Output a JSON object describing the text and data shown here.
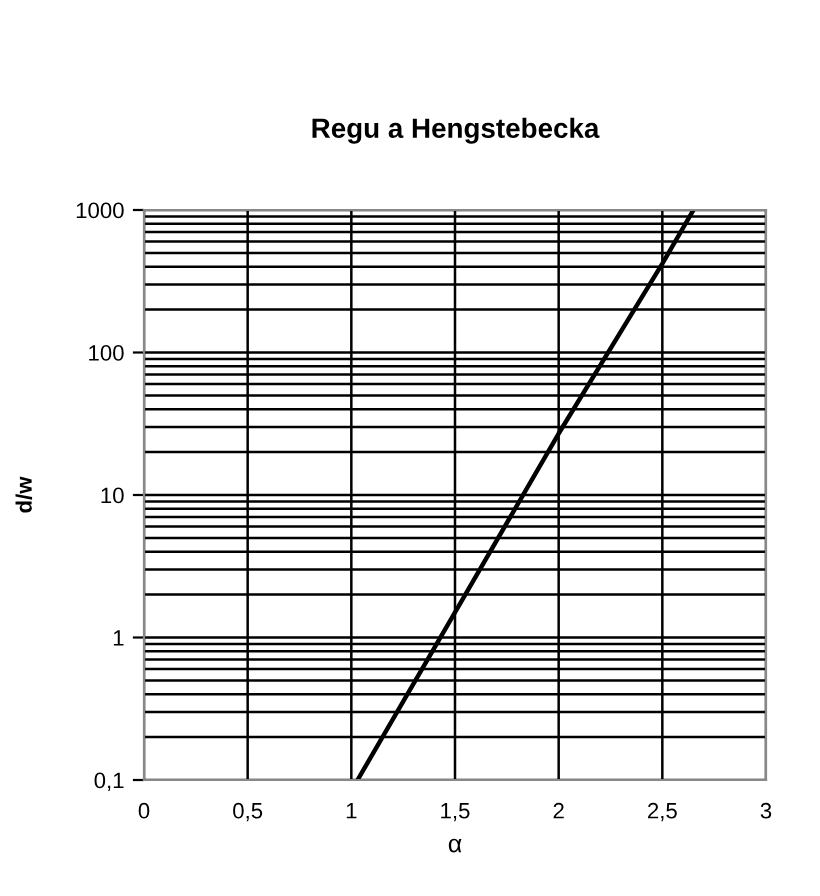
{
  "chart_data": {
    "type": "line",
    "title": "Regu a Hengstebecka",
    "xlabel": "α",
    "ylabel": "d/w",
    "x": [
      1.03,
      1.5,
      2,
      2.5,
      2.65
    ],
    "series": [
      {
        "color": "#000000",
        "values": [
          0.1,
          1.5,
          27,
          420,
          1000
        ]
      }
    ],
    "xlim": [
      0,
      3
    ],
    "ylim": [
      0.1,
      1000
    ],
    "log": "y",
    "xticks": [
      0,
      {
        "value": 0.5,
        "label": "0,5"
      },
      1,
      {
        "value": 1.5,
        "label": "1,5"
      },
      2,
      {
        "value": 2.5,
        "label": "2,5"
      },
      3
    ],
    "yticks": [
      {
        "value": 0.1,
        "label": "0,1"
      },
      1,
      10,
      100,
      1000
    ],
    "grid": true,
    "marker": "none",
    "line_style": "solid"
  }
}
